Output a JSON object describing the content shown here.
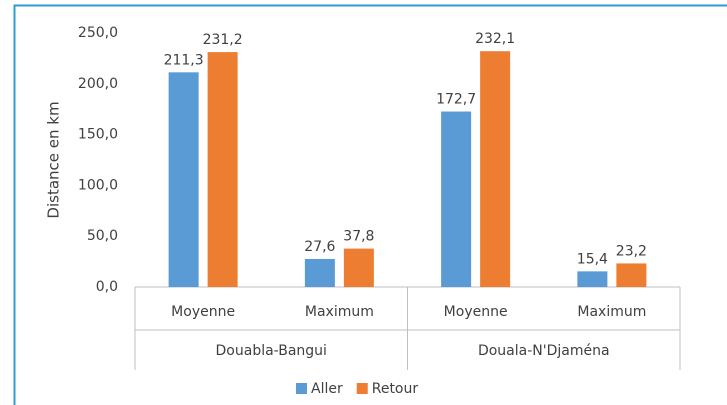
{
  "chart_data": {
    "type": "bar",
    "y_label": "Distance en km",
    "categories": [
      "Moyenne",
      "Maximum",
      "Moyenne",
      "Maximum"
    ],
    "groups": [
      "Douabla-Bangui",
      "Douala-N'Djaména"
    ],
    "series": [
      {
        "name": "Aller",
        "color": "#5b9bd5",
        "values": [
          211.3,
          27.6,
          172.7,
          15.4
        ],
        "value_labels": [
          "211,3",
          "27,6",
          "172,7",
          "15,4"
        ]
      },
      {
        "name": "Retour",
        "color": "#ed7d31",
        "values": [
          231.2,
          37.8,
          232.1,
          23.2
        ],
        "value_labels": [
          "231,2",
          "37,8",
          "232,1",
          "23,2"
        ]
      }
    ],
    "ylim": [
      0,
      250
    ],
    "yticks": [
      {
        "value": 0,
        "label": "0,0"
      },
      {
        "value": 50,
        "label": "50,0"
      },
      {
        "value": 100,
        "label": "100,0"
      },
      {
        "value": 150,
        "label": "150,0"
      },
      {
        "value": 200,
        "label": "200,0"
      },
      {
        "value": 250,
        "label": "250,0"
      }
    ],
    "legend": "bottom"
  }
}
